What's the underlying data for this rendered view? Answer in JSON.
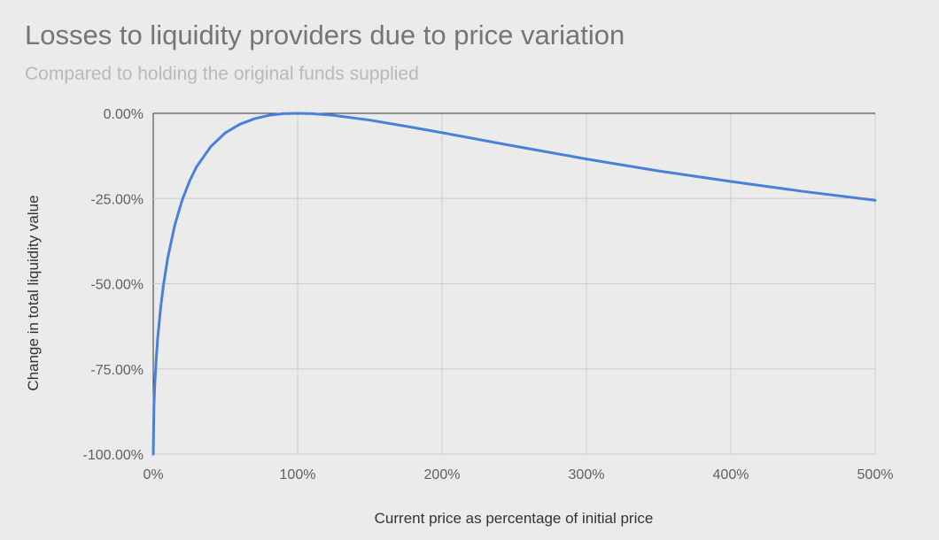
{
  "chart_data": {
    "type": "line",
    "title": "Losses to liquidity providers due to price variation",
    "subtitle": "Compared to holding the original funds supplied",
    "xlabel": "Current price as percentage of initial price",
    "ylabel": "Change in total liquidity value",
    "xlim": [
      0,
      500
    ],
    "ylim": [
      -100,
      0
    ],
    "x_ticks": [
      0,
      100,
      200,
      300,
      400,
      500
    ],
    "x_tick_labels": [
      "0%",
      "100%",
      "200%",
      "300%",
      "400%",
      "500%"
    ],
    "y_ticks": [
      0,
      -25,
      -50,
      -75,
      -100
    ],
    "y_tick_labels": [
      "0.00%",
      "-25.00%",
      "-50.00%",
      "-75.00%",
      "-100.00%"
    ],
    "grid": true,
    "legend": "none",
    "series": [
      {
        "color": "#4a80d9",
        "x": [
          0,
          0.5,
          1,
          2,
          3,
          5,
          7,
          10,
          15,
          20,
          25,
          30,
          40,
          50,
          60,
          70,
          80,
          90,
          100,
          110,
          125,
          150,
          175,
          200,
          250,
          300,
          350,
          400,
          450,
          500
        ],
        "y": [
          -100,
          -85.9,
          -80.2,
          -72.3,
          -66.3,
          -57.4,
          -50.6,
          -42.5,
          -32.7,
          -25.5,
          -20.0,
          -15.7,
          -9.7,
          -5.7,
          -3.2,
          -1.6,
          -0.6,
          -0.1,
          0,
          -0.1,
          -0.6,
          -2.0,
          -3.8,
          -5.7,
          -9.6,
          -13.4,
          -16.9,
          -20.0,
          -22.9,
          -25.5
        ]
      }
    ]
  },
  "colors": {
    "background": "#ebebeb",
    "line": "#4a80d9",
    "grid": "#cccccc",
    "axis": "#333333"
  }
}
